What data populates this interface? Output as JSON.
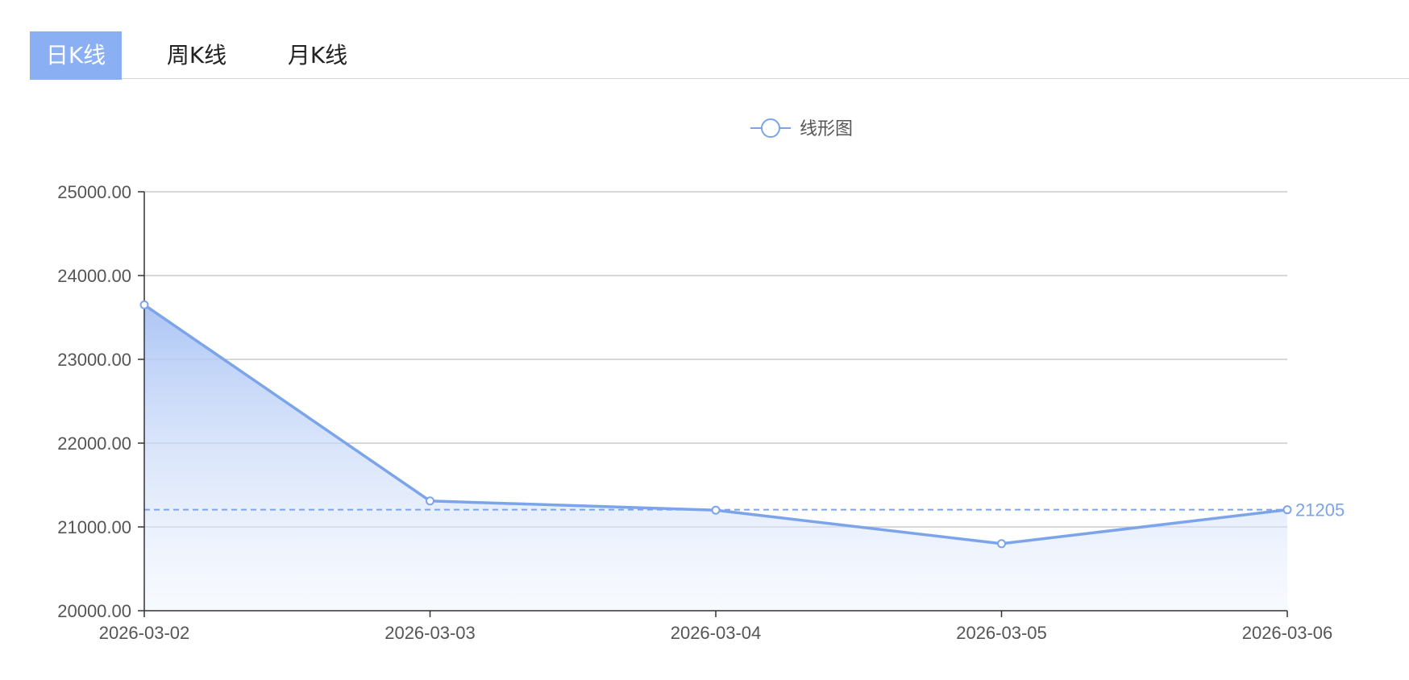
{
  "tabs": [
    {
      "label": "日K线",
      "active": true
    },
    {
      "label": "周K线",
      "active": false
    },
    {
      "label": "月K线",
      "active": false
    }
  ],
  "colors": {
    "accent": "#7ba4ea",
    "tab_active_bg": "#8ab0f3",
    "grid": "#cccccc",
    "axis": "#333333"
  },
  "chart_data": {
    "type": "area",
    "title": "",
    "xlabel": "",
    "ylabel": "",
    "categories": [
      "2026-03-02",
      "2026-03-03",
      "2026-03-04",
      "2026-03-05",
      "2026-03-06"
    ],
    "series": [
      {
        "name": "线形图",
        "values": [
          23650,
          21310,
          21200,
          20800,
          21205
        ]
      }
    ],
    "ylim": [
      20000,
      25000
    ],
    "yticks": [
      "20000.00",
      "21000.00",
      "22000.00",
      "23000.00",
      "24000.00",
      "25000.00"
    ],
    "reference_line": {
      "value": 21205,
      "label": "21205",
      "style": "dashed"
    },
    "grid": true,
    "legend": "top-center"
  }
}
